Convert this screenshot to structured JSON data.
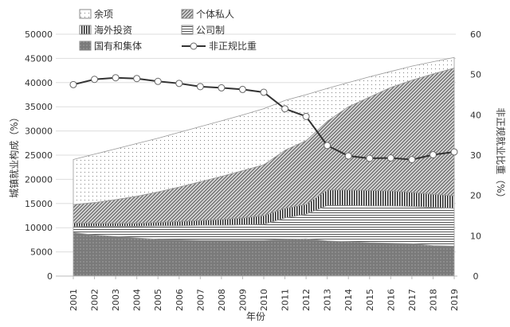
{
  "chart_data": {
    "type": "area",
    "stacked": true,
    "xlabel": "年份",
    "ylabel": "城镇就业构成（%）",
    "y2label": "非正规就业比重（%）",
    "ylim": [
      0,
      50000
    ],
    "yticks": [
      0,
      5000,
      10000,
      15000,
      20000,
      25000,
      30000,
      35000,
      40000,
      45000,
      50000
    ],
    "y2lim": [
      0,
      60
    ],
    "y2ticks": [
      0,
      10,
      20,
      30,
      40,
      50,
      60
    ],
    "grid": true,
    "legend_position": "top-left",
    "x": [
      "2001",
      "2002",
      "2003",
      "2004",
      "2005",
      "2006",
      "2007",
      "2008",
      "2009",
      "2010",
      "2011",
      "2012",
      "2013",
      "2014",
      "2015",
      "2016",
      "2017",
      "2018",
      "2019"
    ],
    "series": [
      {
        "name": "国有和集体",
        "pattern": "dark-dotted",
        "values": [
          9000,
          8500,
          8200,
          7900,
          7600,
          7500,
          7400,
          7400,
          7400,
          7400,
          7600,
          7700,
          7300,
          7100,
          6900,
          6800,
          6700,
          6300,
          6200
        ]
      },
      {
        "name": "公司制",
        "pattern": "horizontal-lines",
        "values": [
          1200,
          1800,
          2100,
          2400,
          2800,
          2900,
          3100,
          3100,
          3200,
          3300,
          4400,
          5100,
          7300,
          7500,
          7600,
          7700,
          7700,
          7900,
          7800
        ]
      },
      {
        "name": "海外投资",
        "pattern": "vertical-lines",
        "values": [
          800,
          600,
          600,
          600,
          700,
          900,
          1000,
          1200,
          1400,
          1800,
          2000,
          2000,
          3200,
          3200,
          3200,
          3100,
          2900,
          2700,
          2600
        ]
      },
      {
        "name": "个体私人",
        "pattern": "diagonal-lines",
        "values": [
          3800,
          4300,
          4900,
          5600,
          6300,
          7100,
          8000,
          8900,
          9800,
          10500,
          12000,
          13200,
          14200,
          17200,
          19300,
          21400,
          23200,
          24900,
          26400
        ]
      },
      {
        "name": "余项",
        "pattern": "light-dotted",
        "values": [
          9300,
          10000,
          10500,
          10900,
          11100,
          11300,
          11400,
          11500,
          11500,
          11600,
          10300,
          9500,
          6800,
          5000,
          4200,
          3300,
          2900,
          2500,
          2200
        ]
      }
    ],
    "line_series": {
      "name": "非正规比重",
      "axis": "right",
      "values": [
        47.5,
        48.8,
        49.2,
        49.0,
        48.3,
        47.8,
        47.0,
        46.7,
        46.3,
        45.6,
        41.5,
        39.6,
        32.4,
        29.8,
        29.2,
        29.3,
        28.9,
        30.1,
        30.8
      ]
    }
  }
}
